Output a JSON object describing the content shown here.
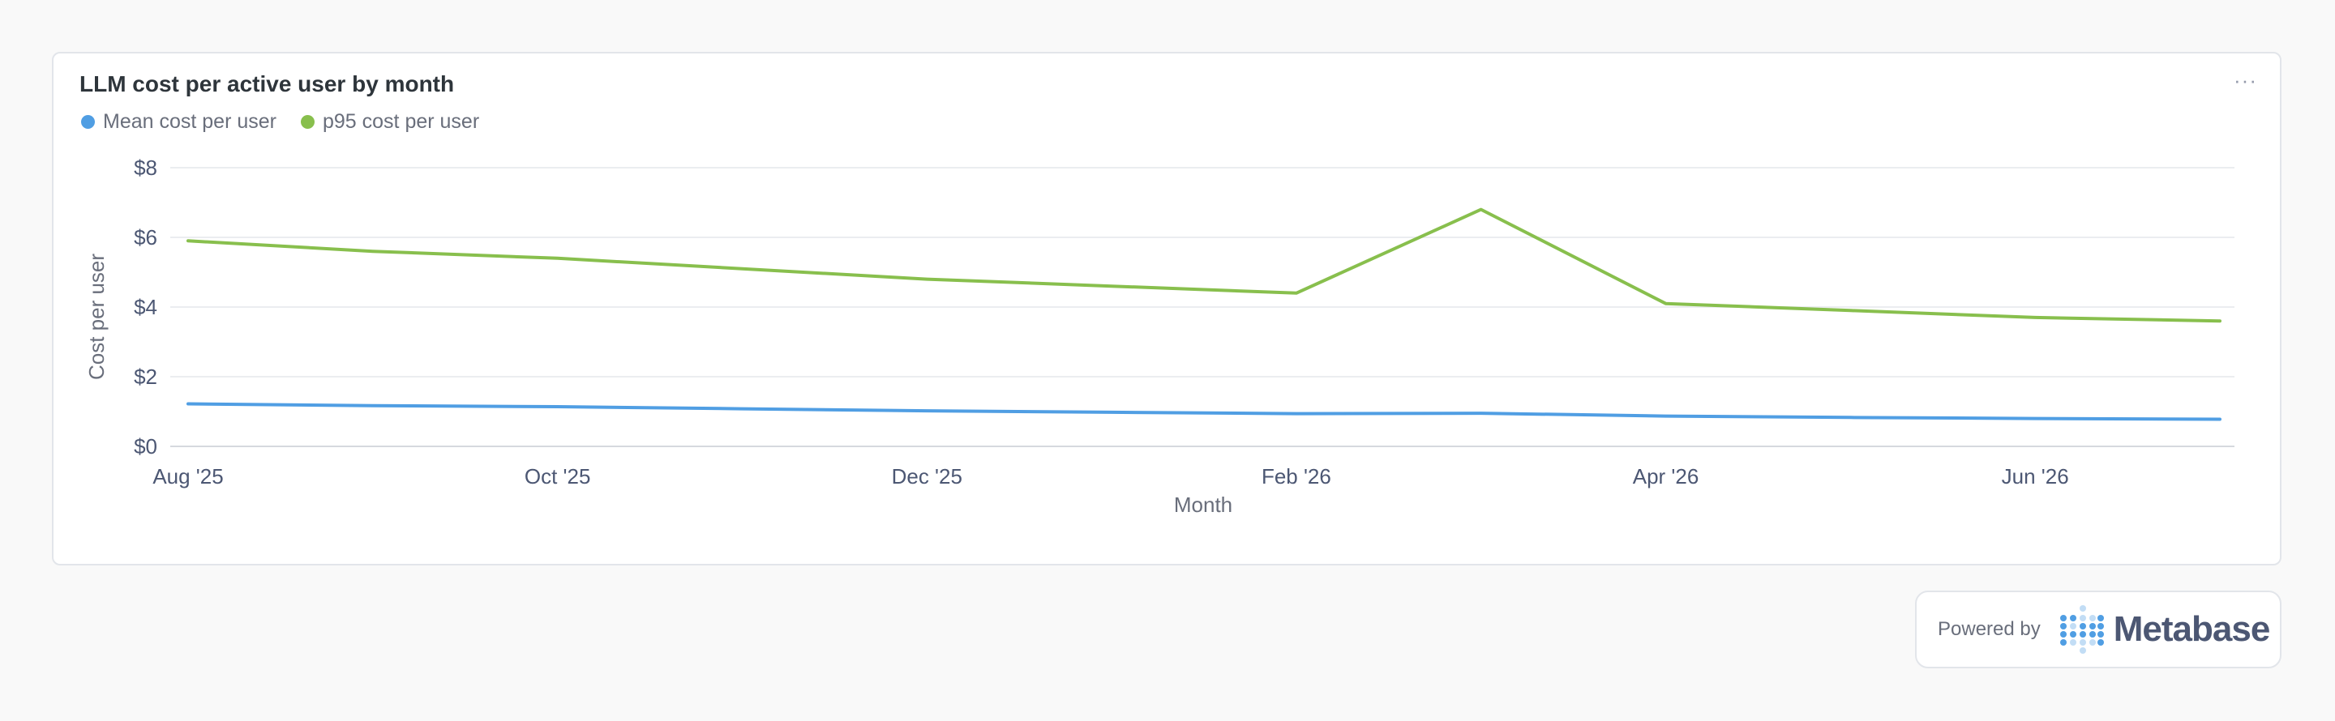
{
  "card": {
    "title": "LLM cost per active user by month",
    "more_icon": "ellipsis-icon",
    "more_label": "···"
  },
  "colors": {
    "mean": "#509ee3",
    "p95": "#88bf4d",
    "grid": "#ebedf0",
    "text": "#4c5773"
  },
  "chart_data": {
    "type": "line",
    "title": "LLM cost per active user by month",
    "xlabel": "Month",
    "ylabel": "Cost per user",
    "x": [
      "Aug '25",
      "Sep '25",
      "Oct '25",
      "Nov '25",
      "Dec '25",
      "Jan '26",
      "Feb '26",
      "Mar '26",
      "Apr '26",
      "May '26",
      "Jun '26",
      "Jul '26"
    ],
    "x_tick_labels": [
      "Aug '25",
      "Oct '25",
      "Dec '25",
      "Feb '26",
      "Apr '26",
      "Jun '26"
    ],
    "series": [
      {
        "name": "Mean cost per user",
        "color_key": "mean",
        "values": [
          1.22,
          1.17,
          1.14,
          1.08,
          1.02,
          0.98,
          0.94,
          0.95,
          0.87,
          0.83,
          0.8,
          0.78
        ]
      },
      {
        "name": "p95 cost per user",
        "color_key": "p95",
        "values": [
          5.9,
          5.6,
          5.4,
          5.1,
          4.8,
          4.6,
          4.4,
          6.8,
          4.1,
          3.9,
          3.7,
          3.6
        ]
      }
    ],
    "ylim": [
      0,
      8
    ],
    "y_ticks": [
      "$0",
      "$2",
      "$4",
      "$6",
      "$8"
    ],
    "y_tick_values": [
      0,
      2,
      4,
      6,
      8
    ],
    "grid": true,
    "legend_position": "top-left"
  },
  "footer": {
    "powered_by": "Powered by",
    "brand": "Metabase"
  }
}
